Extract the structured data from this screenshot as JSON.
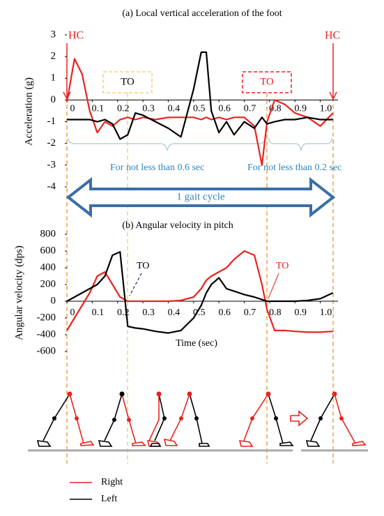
{
  "chart_data": [
    {
      "type": "line",
      "title": "(a) Local vertical acceleration of the foot",
      "ylabel": "Acceleration (g)",
      "x": [
        0,
        0.03,
        0.06,
        0.09,
        0.12,
        0.15,
        0.18,
        0.21,
        0.24,
        0.27,
        0.3,
        0.35,
        0.4,
        0.45,
        0.5,
        0.53,
        0.55,
        0.57,
        0.6,
        0.63,
        0.66,
        0.7,
        0.74,
        0.77,
        0.79,
        0.82,
        0.86,
        0.9,
        0.95,
        1.0,
        1.05
      ],
      "series": [
        {
          "name": "Right",
          "color": "#e8231f",
          "values": [
            -0.1,
            1.9,
            1.2,
            -0.5,
            -1.5,
            -1.0,
            -1.2,
            -0.9,
            -0.8,
            -0.9,
            -0.8,
            -0.9,
            -0.8,
            -0.8,
            -0.8,
            -0.9,
            -0.8,
            -0.9,
            -0.8,
            -0.9,
            -0.8,
            -0.8,
            -1.2,
            -3.0,
            -1.0,
            0.0,
            -0.2,
            -0.6,
            -0.8,
            -1.2,
            -0.6
          ]
        },
        {
          "name": "Left",
          "color": "#000000",
          "values": [
            -0.9,
            -0.9,
            -0.9,
            -0.9,
            -1.0,
            -0.9,
            -1.1,
            -1.8,
            -1.6,
            -0.6,
            -0.7,
            -1.0,
            -1.3,
            -1.7,
            0.5,
            2.2,
            2.2,
            -0.5,
            -1.5,
            -1.0,
            -1.6,
            -1.0,
            -1.3,
            -0.8,
            -1.1,
            -1.0,
            -0.9,
            -0.9,
            -0.8,
            -0.9,
            -0.9
          ]
        }
      ],
      "xlim": [
        0,
        1.07
      ],
      "ylim": [
        -4,
        3
      ],
      "xticks": [
        0,
        0.1,
        0.2,
        0.3,
        0.4,
        0.5,
        0.6,
        0.7,
        0.8,
        0.9,
        {
          "value": 1,
          "label": "1.0"
        }
      ],
      "yticks": [
        -4,
        -3,
        -2,
        -1,
        0,
        1,
        2,
        3
      ],
      "annotations": [
        "HC",
        "HC",
        "TO",
        "TO",
        "For not less than 0.6 sec",
        "For not less than 0.2 sec",
        "1 gait cycle"
      ]
    },
    {
      "type": "line",
      "title": "(b) Angular velocity in pitch",
      "ylabel": "Angular velocity (dps)",
      "xlabel": "Time (sec)",
      "x": [
        0,
        0.03,
        0.06,
        0.09,
        0.12,
        0.15,
        0.18,
        0.21,
        0.24,
        0.27,
        0.3,
        0.35,
        0.4,
        0.45,
        0.5,
        0.53,
        0.55,
        0.57,
        0.6,
        0.63,
        0.66,
        0.7,
        0.74,
        0.77,
        0.79,
        0.82,
        0.86,
        0.9,
        0.95,
        1.0,
        1.05
      ],
      "series": [
        {
          "name": "Right",
          "color": "#e8231f",
          "values": [
            -350,
            -200,
            -50,
            100,
            300,
            350,
            200,
            50,
            0,
            0,
            0,
            0,
            0,
            10,
            50,
            150,
            250,
            300,
            350,
            400,
            500,
            600,
            550,
            200,
            -100,
            -350,
            -350,
            -360,
            -370,
            -370,
            -360
          ]
        },
        {
          "name": "Left",
          "color": "#000000",
          "values": [
            0,
            50,
            100,
            150,
            200,
            300,
            550,
            590,
            -300,
            -320,
            -330,
            -360,
            -380,
            -350,
            -200,
            -50,
            100,
            200,
            280,
            150,
            120,
            80,
            50,
            20,
            0,
            0,
            0,
            0,
            10,
            30,
            100
          ]
        }
      ],
      "xlim": [
        0,
        1.07
      ],
      "ylim": [
        -600,
        800
      ],
      "xticks": [
        0,
        0.1,
        0.2,
        0.3,
        0.4,
        0.5,
        0.6,
        0.7,
        0.8,
        0.9,
        {
          "value": 1,
          "label": "1.0"
        }
      ],
      "yticks": [
        -600,
        -400,
        -200,
        0,
        200,
        400,
        600,
        800
      ],
      "annotations": [
        "TO",
        "TO"
      ]
    }
  ]
}
